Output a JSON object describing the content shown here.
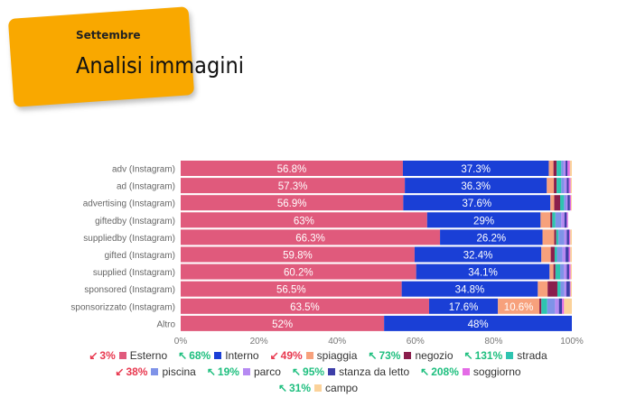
{
  "header": {
    "subtitle": "Settembre",
    "title": "Analisi immagini"
  },
  "colors": {
    "Esterno": "#e05a7c",
    "Interno": "#1a3fd6",
    "spiaggia": "#f7a17c",
    "negozio": "#8a1e4c",
    "strada": "#2ec4b0",
    "piscina": "#7f93e8",
    "parco": "#b68af2",
    "stanza da letto": "#3d3ea8",
    "soggiorno": "#e46be6",
    "campo": "#fbd29a",
    "up": "#1fbf7f",
    "down": "#e8384f"
  },
  "legend": [
    {
      "pct": "3%",
      "dir": "down",
      "label": "Esterno"
    },
    {
      "pct": "68%",
      "dir": "up",
      "label": "Interno"
    },
    {
      "pct": "49%",
      "dir": "down",
      "label": "spiaggia"
    },
    {
      "pct": "73%",
      "dir": "up",
      "label": "negozio"
    },
    {
      "pct": "131%",
      "dir": "up",
      "label": "strada"
    },
    {
      "pct": "38%",
      "dir": "down",
      "label": "piscina"
    },
    {
      "pct": "19%",
      "dir": "up",
      "label": "parco"
    },
    {
      "pct": "95%",
      "dir": "up",
      "label": "stanza da letto"
    },
    {
      "pct": "208%",
      "dir": "up",
      "label": "soggiorno"
    },
    {
      "pct": "31%",
      "dir": "up",
      "label": "campo"
    }
  ],
  "chart_data": {
    "type": "bar",
    "orientation": "horizontal",
    "stacked": "percent",
    "xlim": [
      0,
      100
    ],
    "xticks": [
      "0%",
      "20%",
      "40%",
      "60%",
      "80%",
      "100%"
    ],
    "categories": [
      "adv (Instagram)",
      "ad (Instagram)",
      "advertising (Instagram)",
      "giftedby (Instagram)",
      "suppliedby (Instagram)",
      "gifted (Instagram)",
      "supplied (Instagram)",
      "sponsored (Instagram)",
      "sponsorizzato (Instagram)",
      "Altro"
    ],
    "series": [
      {
        "name": "Esterno",
        "values": [
          56.8,
          57.3,
          56.9,
          63,
          66.3,
          59.8,
          60.2,
          56.5,
          63.5,
          52
        ],
        "labels": [
          "56.8%",
          "57.3%",
          "56.9%",
          "63%",
          "66.3%",
          "59.8%",
          "60.2%",
          "56.5%",
          "63.5%",
          "52%"
        ]
      },
      {
        "name": "Interno",
        "values": [
          37.3,
          36.3,
          37.6,
          29,
          26.2,
          32.4,
          34.1,
          34.8,
          17.6,
          48
        ],
        "labels": [
          "37.3%",
          "36.3%",
          "37.6%",
          "29%",
          "26.2%",
          "32.4%",
          "34.1%",
          "34.8%",
          "17.6%",
          "48%"
        ]
      },
      {
        "name": "spiaggia",
        "values": [
          1.2,
          1.8,
          1.0,
          2.5,
          3.0,
          2.4,
          1.0,
          2.5,
          10.6,
          0
        ],
        "labels": [
          "",
          "",
          "",
          "",
          "",
          "",
          "",
          "",
          "10.6%",
          ""
        ]
      },
      {
        "name": "negozio",
        "values": [
          0.8,
          0.7,
          1.5,
          0.5,
          0.5,
          1.0,
          0.5,
          2.5,
          0.5,
          0
        ]
      },
      {
        "name": "strada",
        "values": [
          1.2,
          1.2,
          1.0,
          0.8,
          0.6,
          0.6,
          1.2,
          0.8,
          1.5,
          0
        ]
      },
      {
        "name": "piscina",
        "values": [
          0.6,
          0.8,
          0.5,
          1.5,
          1.5,
          1.4,
          1.0,
          1.0,
          2.0,
          0
        ]
      },
      {
        "name": "parco",
        "values": [
          0.5,
          0.6,
          0.4,
          0.8,
          0.6,
          0.8,
          0.7,
          0.5,
          1.0,
          0
        ]
      },
      {
        "name": "stanza da letto",
        "values": [
          0.5,
          0.5,
          0.6,
          0.6,
          0.6,
          0.8,
          0.6,
          0.9,
          0.8,
          0
        ]
      },
      {
        "name": "soggiorno",
        "values": [
          0.6,
          0.5,
          0.3,
          0.3,
          0.3,
          0.4,
          0.4,
          0.2,
          0.5,
          0
        ]
      },
      {
        "name": "campo",
        "values": [
          0.5,
          0.3,
          0.2,
          0.0,
          0.4,
          0.4,
          0.3,
          0.3,
          2.0,
          0
        ]
      }
    ]
  }
}
